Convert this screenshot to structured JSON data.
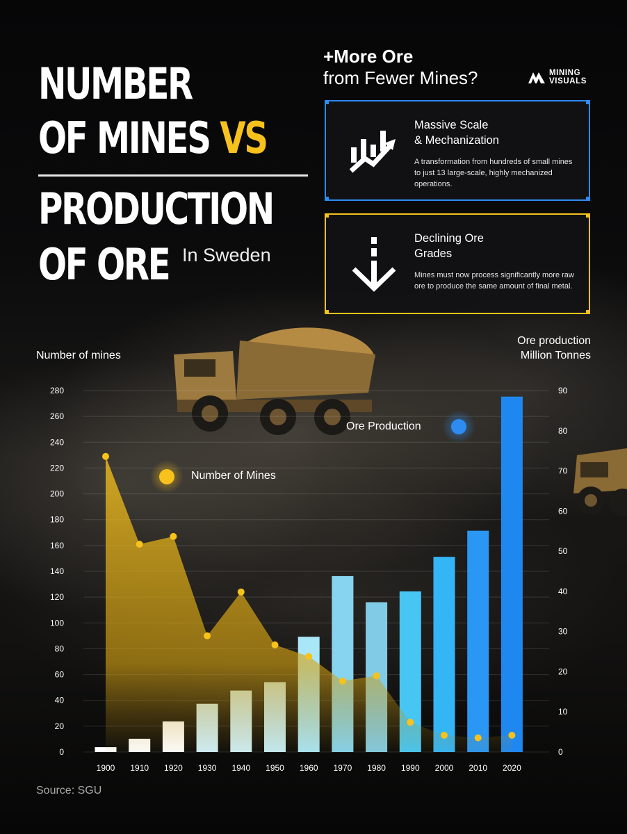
{
  "title": {
    "line1": "NUMBER",
    "line2_pre": "OF MINES ",
    "line2_accent": "VS",
    "line3": "PRODUCTION",
    "line4": "OF ORE",
    "suffix": "In Sweden"
  },
  "question": {
    "line1": "+More Ore",
    "line2": "from Fewer Mines?"
  },
  "logo": {
    "line1": "MINING",
    "line2": "VISUALS"
  },
  "cards": [
    {
      "title_line1": "Massive Scale",
      "title_line2": "& Mechanization",
      "body": "A transformation from hundreds of small mines to just 13 large-scale, highly mechanized operations.",
      "icon": "growth-chart-icon",
      "accent": "#2e8bf0"
    },
    {
      "title_line1": "Declining Ore",
      "title_line2": "Grades",
      "body": "Mines must now process significantly more raw ore to produce the same amount of final metal.",
      "icon": "down-arrow-icon",
      "accent": "#f7c21c"
    }
  ],
  "chart_data": {
    "type": "bar+area",
    "x": [
      1900,
      1910,
      1920,
      1930,
      1940,
      1950,
      1960,
      1970,
      1980,
      1990,
      2000,
      2010,
      2020
    ],
    "series": [
      {
        "name": "Number of Mines",
        "type": "area",
        "axis": "left",
        "color": "#f7c21c",
        "values": [
          229,
          161,
          167,
          90,
          124,
          83,
          74,
          55,
          59,
          23,
          13,
          11,
          13
        ]
      },
      {
        "name": "Ore Production",
        "type": "bar",
        "axis": "right",
        "color": "#2e8bf0",
        "values": [
          1.2,
          3.3,
          7.6,
          12.0,
          15.3,
          17.4,
          28.7,
          43.8,
          37.3,
          40.0,
          48.6,
          55.1,
          88.5
        ]
      }
    ],
    "left_axis": {
      "label": "Number of mines",
      "min": 0,
      "max": 280,
      "ticks": [
        0,
        20,
        40,
        60,
        80,
        100,
        120,
        140,
        160,
        180,
        200,
        220,
        240,
        260,
        280
      ]
    },
    "right_axis": {
      "label_line1": "Ore production",
      "label_line2": "Million Tonnes",
      "min": 0,
      "max": 90,
      "ticks": [
        0,
        10,
        20,
        30,
        40,
        50,
        60,
        70,
        80,
        90
      ]
    },
    "grid": true
  },
  "source": "Source: SGU"
}
